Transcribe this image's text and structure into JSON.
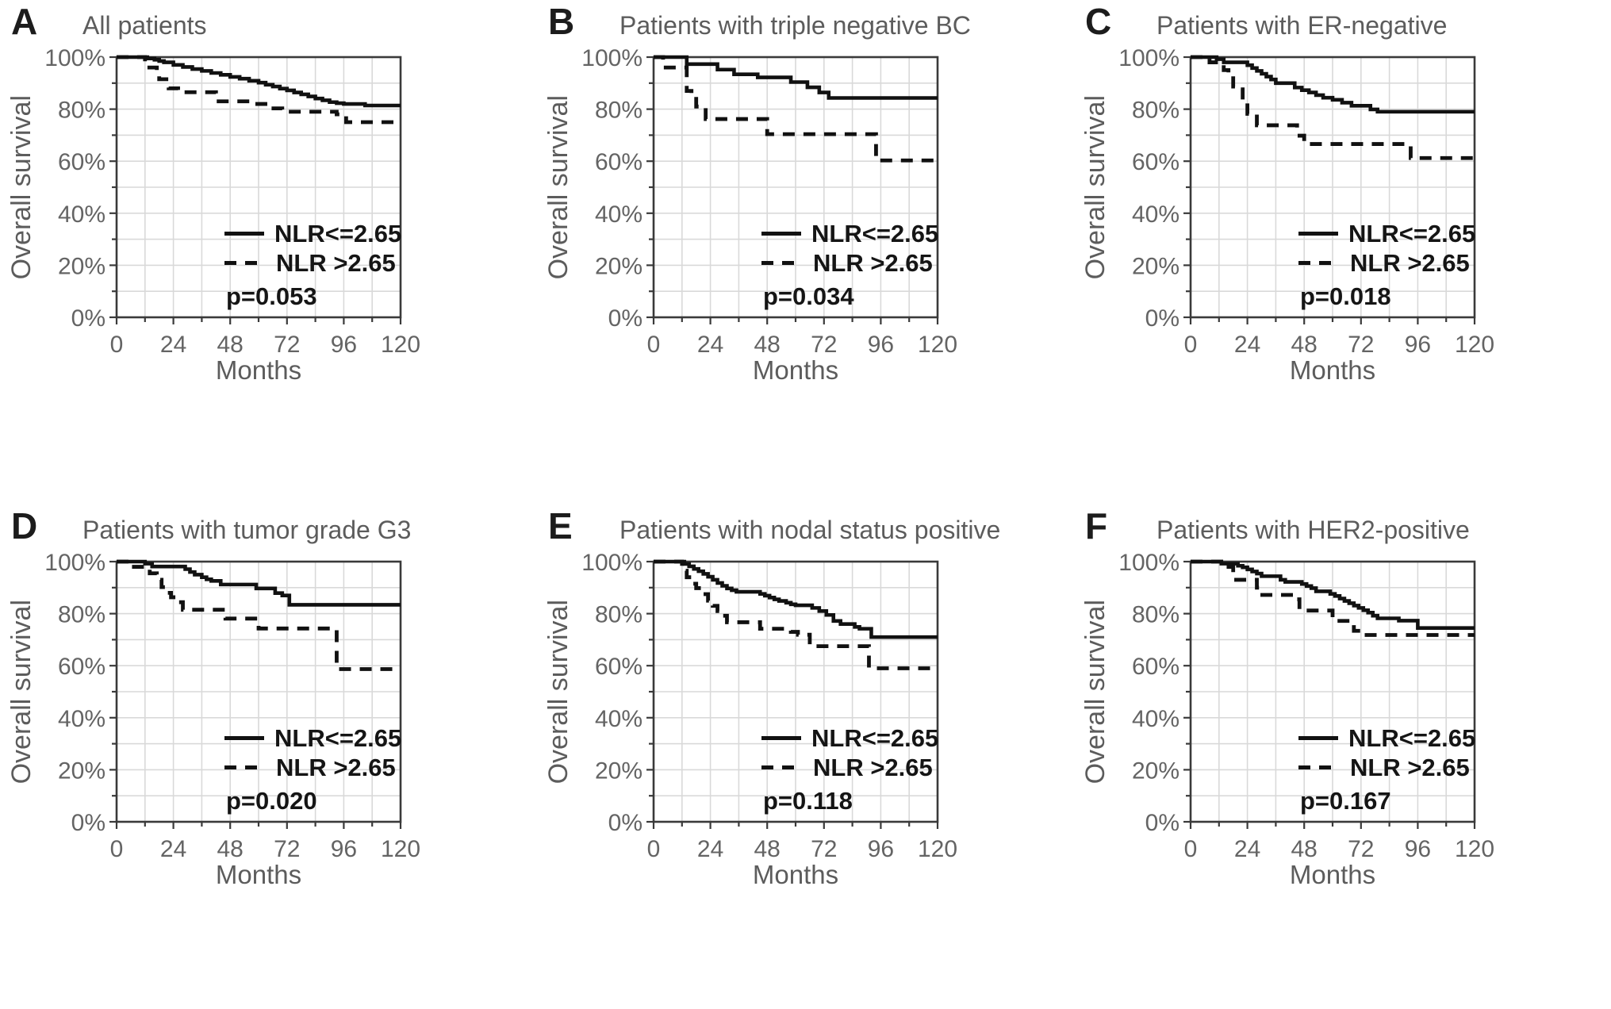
{
  "chart_data": {
    "type": "line",
    "subtype": "kaplan-meier-step",
    "layout": "2 rows x 3 columns",
    "x": {
      "label": "Months",
      "ticks": [
        0,
        24,
        48,
        72,
        96,
        120
      ],
      "minor_step": 12,
      "range": [
        0,
        120
      ]
    },
    "y": {
      "label": "Overall survival",
      "ticks": [
        0,
        20,
        40,
        60,
        80,
        100
      ],
      "tick_labels": [
        "0%",
        "20%",
        "40%",
        "60%",
        "80%",
        "100%"
      ],
      "minor_step": 10,
      "range": [
        0,
        100
      ]
    },
    "legend": {
      "position": "lower-right-inside",
      "entries": [
        {
          "label": "NLR<=2.65",
          "style": "solid"
        },
        {
          "label": "NLR >2.65",
          "style": "dashed"
        }
      ]
    },
    "colors": {
      "curve": "#111111",
      "grid": "#d9d9d9",
      "axis": "#3a3a3a",
      "tick_text": "#646464",
      "title_text": "#5c5c5c",
      "legend_text": "#151515",
      "background": "#ffffff"
    },
    "panels": [
      {
        "letter": "A",
        "title": "All patients",
        "p_label": "p=0.053",
        "p_value": 0.053,
        "series": [
          {
            "name": "NLR<=2.65",
            "style": "solid",
            "points": [
              [
                0,
                100
              ],
              [
                13,
                99.5
              ],
              [
                16,
                99
              ],
              [
                18,
                98.5
              ],
              [
                20,
                98
              ],
              [
                24,
                97
              ],
              [
                28,
                96.2
              ],
              [
                32,
                95.4
              ],
              [
                36,
                94.7
              ],
              [
                40,
                93.9
              ],
              [
                44,
                93.2
              ],
              [
                48,
                92.4
              ],
              [
                52,
                91.7
              ],
              [
                56,
                90.9
              ],
              [
                60,
                90.2
              ],
              [
                63,
                89.4
              ],
              [
                66,
                88.7
              ],
              [
                69,
                87.9
              ],
              [
                72,
                87.2
              ],
              [
                75,
                86.4
              ],
              [
                78,
                85.7
              ],
              [
                81,
                84.9
              ],
              [
                84,
                84.1
              ],
              [
                87,
                83.4
              ],
              [
                90,
                82.7
              ],
              [
                93,
                82.3
              ],
              [
                96,
                82
              ],
              [
                105,
                81.4
              ]
            ]
          },
          {
            "name": "NLR >2.65",
            "style": "dashed",
            "points": [
              [
                0,
                100
              ],
              [
                12,
                96
              ],
              [
                17,
                94
              ],
              [
                18,
                91.5
              ],
              [
                22,
                88
              ],
              [
                26,
                86.5
              ],
              [
                42,
                83
              ],
              [
                58,
                82
              ],
              [
                64,
                80.3
              ],
              [
                70,
                79
              ],
              [
                93,
                78
              ],
              [
                97,
                75
              ]
            ]
          }
        ]
      },
      {
        "letter": "B",
        "title": "Patients with triple negative BC",
        "p_label": "p=0.034",
        "p_value": 0.034,
        "series": [
          {
            "name": "NLR<=2.65",
            "style": "solid",
            "points": [
              [
                0,
                100
              ],
              [
                14,
                97.3
              ],
              [
                27,
                95.2
              ],
              [
                34,
                93.4
              ],
              [
                44,
                92.2
              ],
              [
                58,
                90.4
              ],
              [
                65,
                88.4
              ],
              [
                70,
                86.4
              ],
              [
                74,
                84.3
              ]
            ]
          },
          {
            "name": "NLR >2.65",
            "style": "dashed",
            "points": [
              [
                0,
                100
              ],
              [
                4,
                96
              ],
              [
                14,
                87
              ],
              [
                16,
                85.5
              ],
              [
                18,
                81
              ],
              [
                22,
                76.2
              ],
              [
                48,
                70.4
              ],
              [
                94,
                60.3
              ]
            ]
          }
        ]
      },
      {
        "letter": "C",
        "title": "Patients with ER-negative",
        "p_label": "p=0.018",
        "p_value": 0.018,
        "series": [
          {
            "name": "NLR<=2.65",
            "style": "solid",
            "points": [
              [
                0,
                100
              ],
              [
                11,
                99.2
              ],
              [
                14,
                98
              ],
              [
                24,
                96.9
              ],
              [
                26,
                95.8
              ],
              [
                28,
                94.7
              ],
              [
                30,
                93.6
              ],
              [
                32,
                92.5
              ],
              [
                34,
                91.4
              ],
              [
                36,
                90
              ],
              [
                44,
                88.3
              ],
              [
                47,
                87.3
              ],
              [
                50,
                86.4
              ],
              [
                53,
                85.4
              ],
              [
                56,
                84.4
              ],
              [
                60,
                83.6
              ],
              [
                64,
                82.5
              ],
              [
                68,
                81.3
              ],
              [
                76,
                79.9
              ],
              [
                79,
                79
              ]
            ]
          },
          {
            "name": "NLR >2.65",
            "style": "dashed",
            "points": [
              [
                0,
                100
              ],
              [
                8,
                98
              ],
              [
                14,
                95
              ],
              [
                16,
                92.6
              ],
              [
                18,
                88.7
              ],
              [
                20,
                87.6
              ],
              [
                22,
                82.5
              ],
              [
                24,
                78.2
              ],
              [
                28,
                73.8
              ],
              [
                45,
                69.8
              ],
              [
                48,
                66.6
              ],
              [
                93,
                61.2
              ]
            ]
          }
        ]
      },
      {
        "letter": "D",
        "title": "Patients with tumor grade G3",
        "p_label": "p=0.020",
        "p_value": 0.02,
        "series": [
          {
            "name": "NLR<=2.65",
            "style": "solid",
            "points": [
              [
                0,
                100
              ],
              [
                12,
                99.2
              ],
              [
                15,
                98.1
              ],
              [
                29,
                97.1
              ],
              [
                31,
                96
              ],
              [
                33,
                95
              ],
              [
                36,
                94
              ],
              [
                38,
                93.2
              ],
              [
                40,
                92.6
              ],
              [
                44,
                91.2
              ],
              [
                59,
                89.7
              ],
              [
                67,
                87.9
              ],
              [
                70,
                87
              ],
              [
                73,
                83.4
              ]
            ]
          },
          {
            "name": "NLR >2.65",
            "style": "dashed",
            "points": [
              [
                0,
                100
              ],
              [
                6,
                98
              ],
              [
                14,
                95.5
              ],
              [
                17,
                93
              ],
              [
                19,
                90.2
              ],
              [
                21,
                88
              ],
              [
                23,
                86.3
              ],
              [
                25,
                84.4
              ],
              [
                28,
                81.5
              ],
              [
                46,
                78.1
              ],
              [
                60,
                74.3
              ],
              [
                93,
                58.7
              ]
            ]
          }
        ]
      },
      {
        "letter": "E",
        "title": "Patients with nodal status positive",
        "p_label": "p=0.118",
        "p_value": 0.118,
        "series": [
          {
            "name": "NLR<=2.65",
            "style": "solid",
            "points": [
              [
                0,
                100
              ],
              [
                13,
                99.1
              ],
              [
                15,
                98.2
              ],
              [
                17,
                97.2
              ],
              [
                19,
                96.3
              ],
              [
                21,
                95.3
              ],
              [
                23,
                94.2
              ],
              [
                25,
                93
              ],
              [
                27,
                91.8
              ],
              [
                29,
                90.7
              ],
              [
                31,
                89.7
              ],
              [
                33,
                89
              ],
              [
                35,
                88.4
              ],
              [
                45,
                87.6
              ],
              [
                47,
                86.9
              ],
              [
                49,
                86.2
              ],
              [
                51,
                85.5
              ],
              [
                53,
                84.9
              ],
              [
                56,
                84.2
              ],
              [
                58,
                83.6
              ],
              [
                60,
                83.2
              ],
              [
                67,
                82.2
              ],
              [
                70,
                81
              ],
              [
                73,
                79.5
              ],
              [
                76,
                77.2
              ],
              [
                79,
                76
              ],
              [
                85,
                74.9
              ],
              [
                87,
                74.2
              ],
              [
                92,
                71
              ]
            ]
          },
          {
            "name": "NLR >2.65",
            "style": "dashed",
            "points": [
              [
                0,
                100
              ],
              [
                12,
                96.5
              ],
              [
                14,
                94
              ],
              [
                16,
                91.5
              ],
              [
                18,
                89.8
              ],
              [
                20,
                87.5
              ],
              [
                23,
                85
              ],
              [
                25,
                83
              ],
              [
                27,
                81
              ],
              [
                29,
                79.2
              ],
              [
                31,
                76.7
              ],
              [
                45,
                74.2
              ],
              [
                58,
                73
              ],
              [
                61,
                71.9
              ],
              [
                66,
                67.5
              ],
              [
                91,
                59
              ]
            ]
          }
        ]
      },
      {
        "letter": "F",
        "title": "Patients with HER2-positive",
        "p_label": "p=0.167",
        "p_value": 0.167,
        "series": [
          {
            "name": "NLR<=2.65",
            "style": "solid",
            "points": [
              [
                0,
                100
              ],
              [
                13,
                99.2
              ],
              [
                20,
                98.4
              ],
              [
                22,
                97.8
              ],
              [
                24,
                97
              ],
              [
                26,
                96.2
              ],
              [
                28,
                95.4
              ],
              [
                30,
                94.4
              ],
              [
                38,
                93
              ],
              [
                40,
                92.2
              ],
              [
                47,
                91.4
              ],
              [
                49,
                90.6
              ],
              [
                51,
                89.8
              ],
              [
                53,
                88.6
              ],
              [
                59,
                87.6
              ],
              [
                61,
                86.8
              ],
              [
                63,
                85.8
              ],
              [
                65,
                84.9
              ],
              [
                67,
                84
              ],
              [
                69,
                83.1
              ],
              [
                71,
                82.2
              ],
              [
                73,
                81.3
              ],
              [
                75,
                80.4
              ],
              [
                77,
                79.2
              ],
              [
                79,
                78.2
              ],
              [
                88,
                77.3
              ],
              [
                96,
                74.5
              ]
            ]
          },
          {
            "name": "NLR >2.65",
            "style": "dashed",
            "points": [
              [
                0,
                100
              ],
              [
                14,
                98
              ],
              [
                18,
                93
              ],
              [
                28,
                90
              ],
              [
                29,
                87.2
              ],
              [
                45,
                85.5
              ],
              [
                46,
                81.2
              ],
              [
                60,
                77.2
              ],
              [
                69,
                73.4
              ],
              [
                73,
                71.8
              ]
            ]
          }
        ]
      }
    ]
  }
}
